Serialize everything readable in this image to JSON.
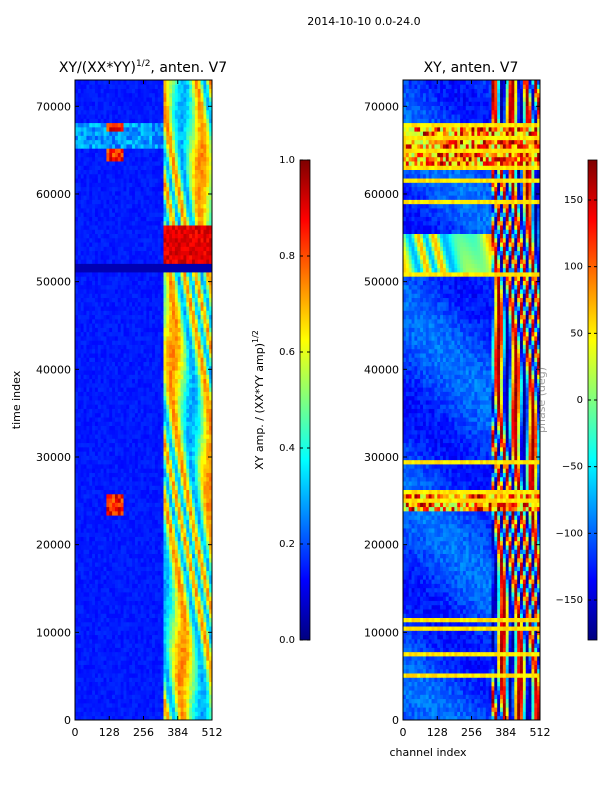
{
  "suptitle": "2014-10-10 0.0-24.0",
  "colors": {
    "jet": [
      "#00007f",
      "#0000ff",
      "#007fff",
      "#00ffff",
      "#7fff7f",
      "#ffff00",
      "#ff7f00",
      "#ff0000",
      "#7f0000"
    ]
  },
  "chart_data": [
    {
      "type": "heatmap",
      "title": "XY/(XX*YY)",
      "title_exponent": "1/2",
      "title_suffix": ", anten. V7",
      "xlabel": "",
      "ylabel": "time index",
      "xlim": [
        0,
        512
      ],
      "ylim": [
        0,
        73000
      ],
      "xticks": [
        0,
        128,
        256,
        384,
        512
      ],
      "yticks": [
        0,
        10000,
        20000,
        30000,
        40000,
        50000,
        60000,
        70000
      ],
      "colorbar": {
        "label": "XY amp. / (XX*YY amp)",
        "label_exponent": "1/2",
        "range": [
          0.0,
          1.0
        ],
        "ticks": [
          "0.0",
          "0.2",
          "0.4",
          "0.6",
          "0.8",
          "1.0"
        ]
      },
      "pattern": "mostly low amplitude (~0.1) across all channels; elevated and highly variable amplitude in channels ~330-512; bright spikes near channel 150 at time ~24000, ~25500, ~64500 and ~67500; strong red block in channels ~330-512 around time 52000-56000"
    },
    {
      "type": "heatmap",
      "title": "XY, anten. V7",
      "xlabel": "channel index",
      "ylabel": "",
      "xlim": [
        0,
        512
      ],
      "ylim": [
        0,
        73000
      ],
      "xticks": [
        0,
        128,
        256,
        384,
        512
      ],
      "yticks": [
        0,
        10000,
        20000,
        30000,
        40000,
        50000,
        60000,
        70000
      ],
      "colorbar": {
        "label": "phase (deg)",
        "range": [
          -180,
          180
        ],
        "ticks": [
          "−150",
          "−100",
          "−50",
          "0",
          "50",
          "100",
          "150"
        ]
      },
      "pattern": "phase mostly around -130 deg; channels ~330-512 show wrapping phase between -180 and 180; bright horizontal bands at many times, strongest near 24000-26000 and 63000-68000; broad variable band near 51000-56000"
    }
  ]
}
